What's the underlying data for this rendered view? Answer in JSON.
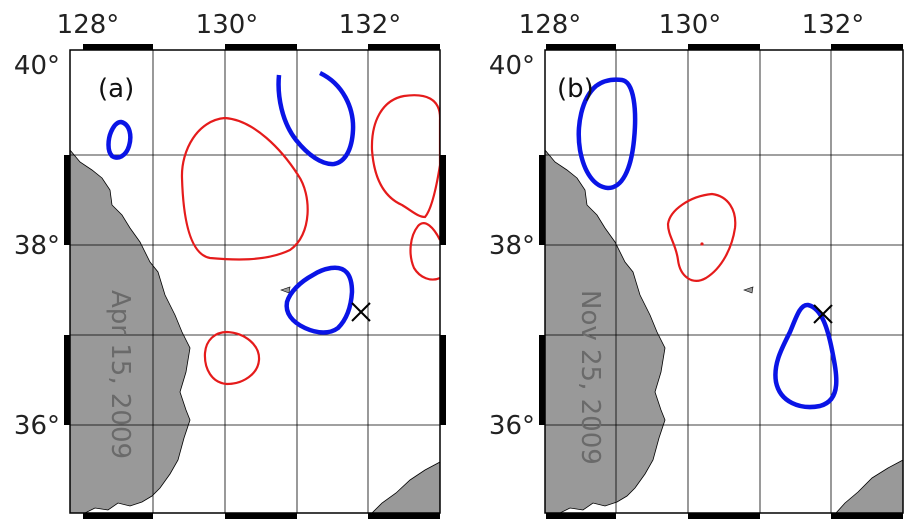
{
  "x_axis": {
    "ticks": [
      "128°",
      "130°",
      "132°"
    ]
  },
  "y_axis": {
    "ticks": [
      "40°",
      "38°",
      "36°"
    ]
  },
  "panels": [
    {
      "label": "(a)",
      "date": "Apr 15, 2009"
    },
    {
      "label": "(b)",
      "date": "Nov 25, 2009"
    }
  ],
  "colors": {
    "land": "#999999",
    "warm_eddy": "#e51b1b",
    "cold_eddy": "#0a14e6",
    "frame": "#000000",
    "grid": "#000000"
  },
  "marker_icon": "cross-marker-icon"
}
